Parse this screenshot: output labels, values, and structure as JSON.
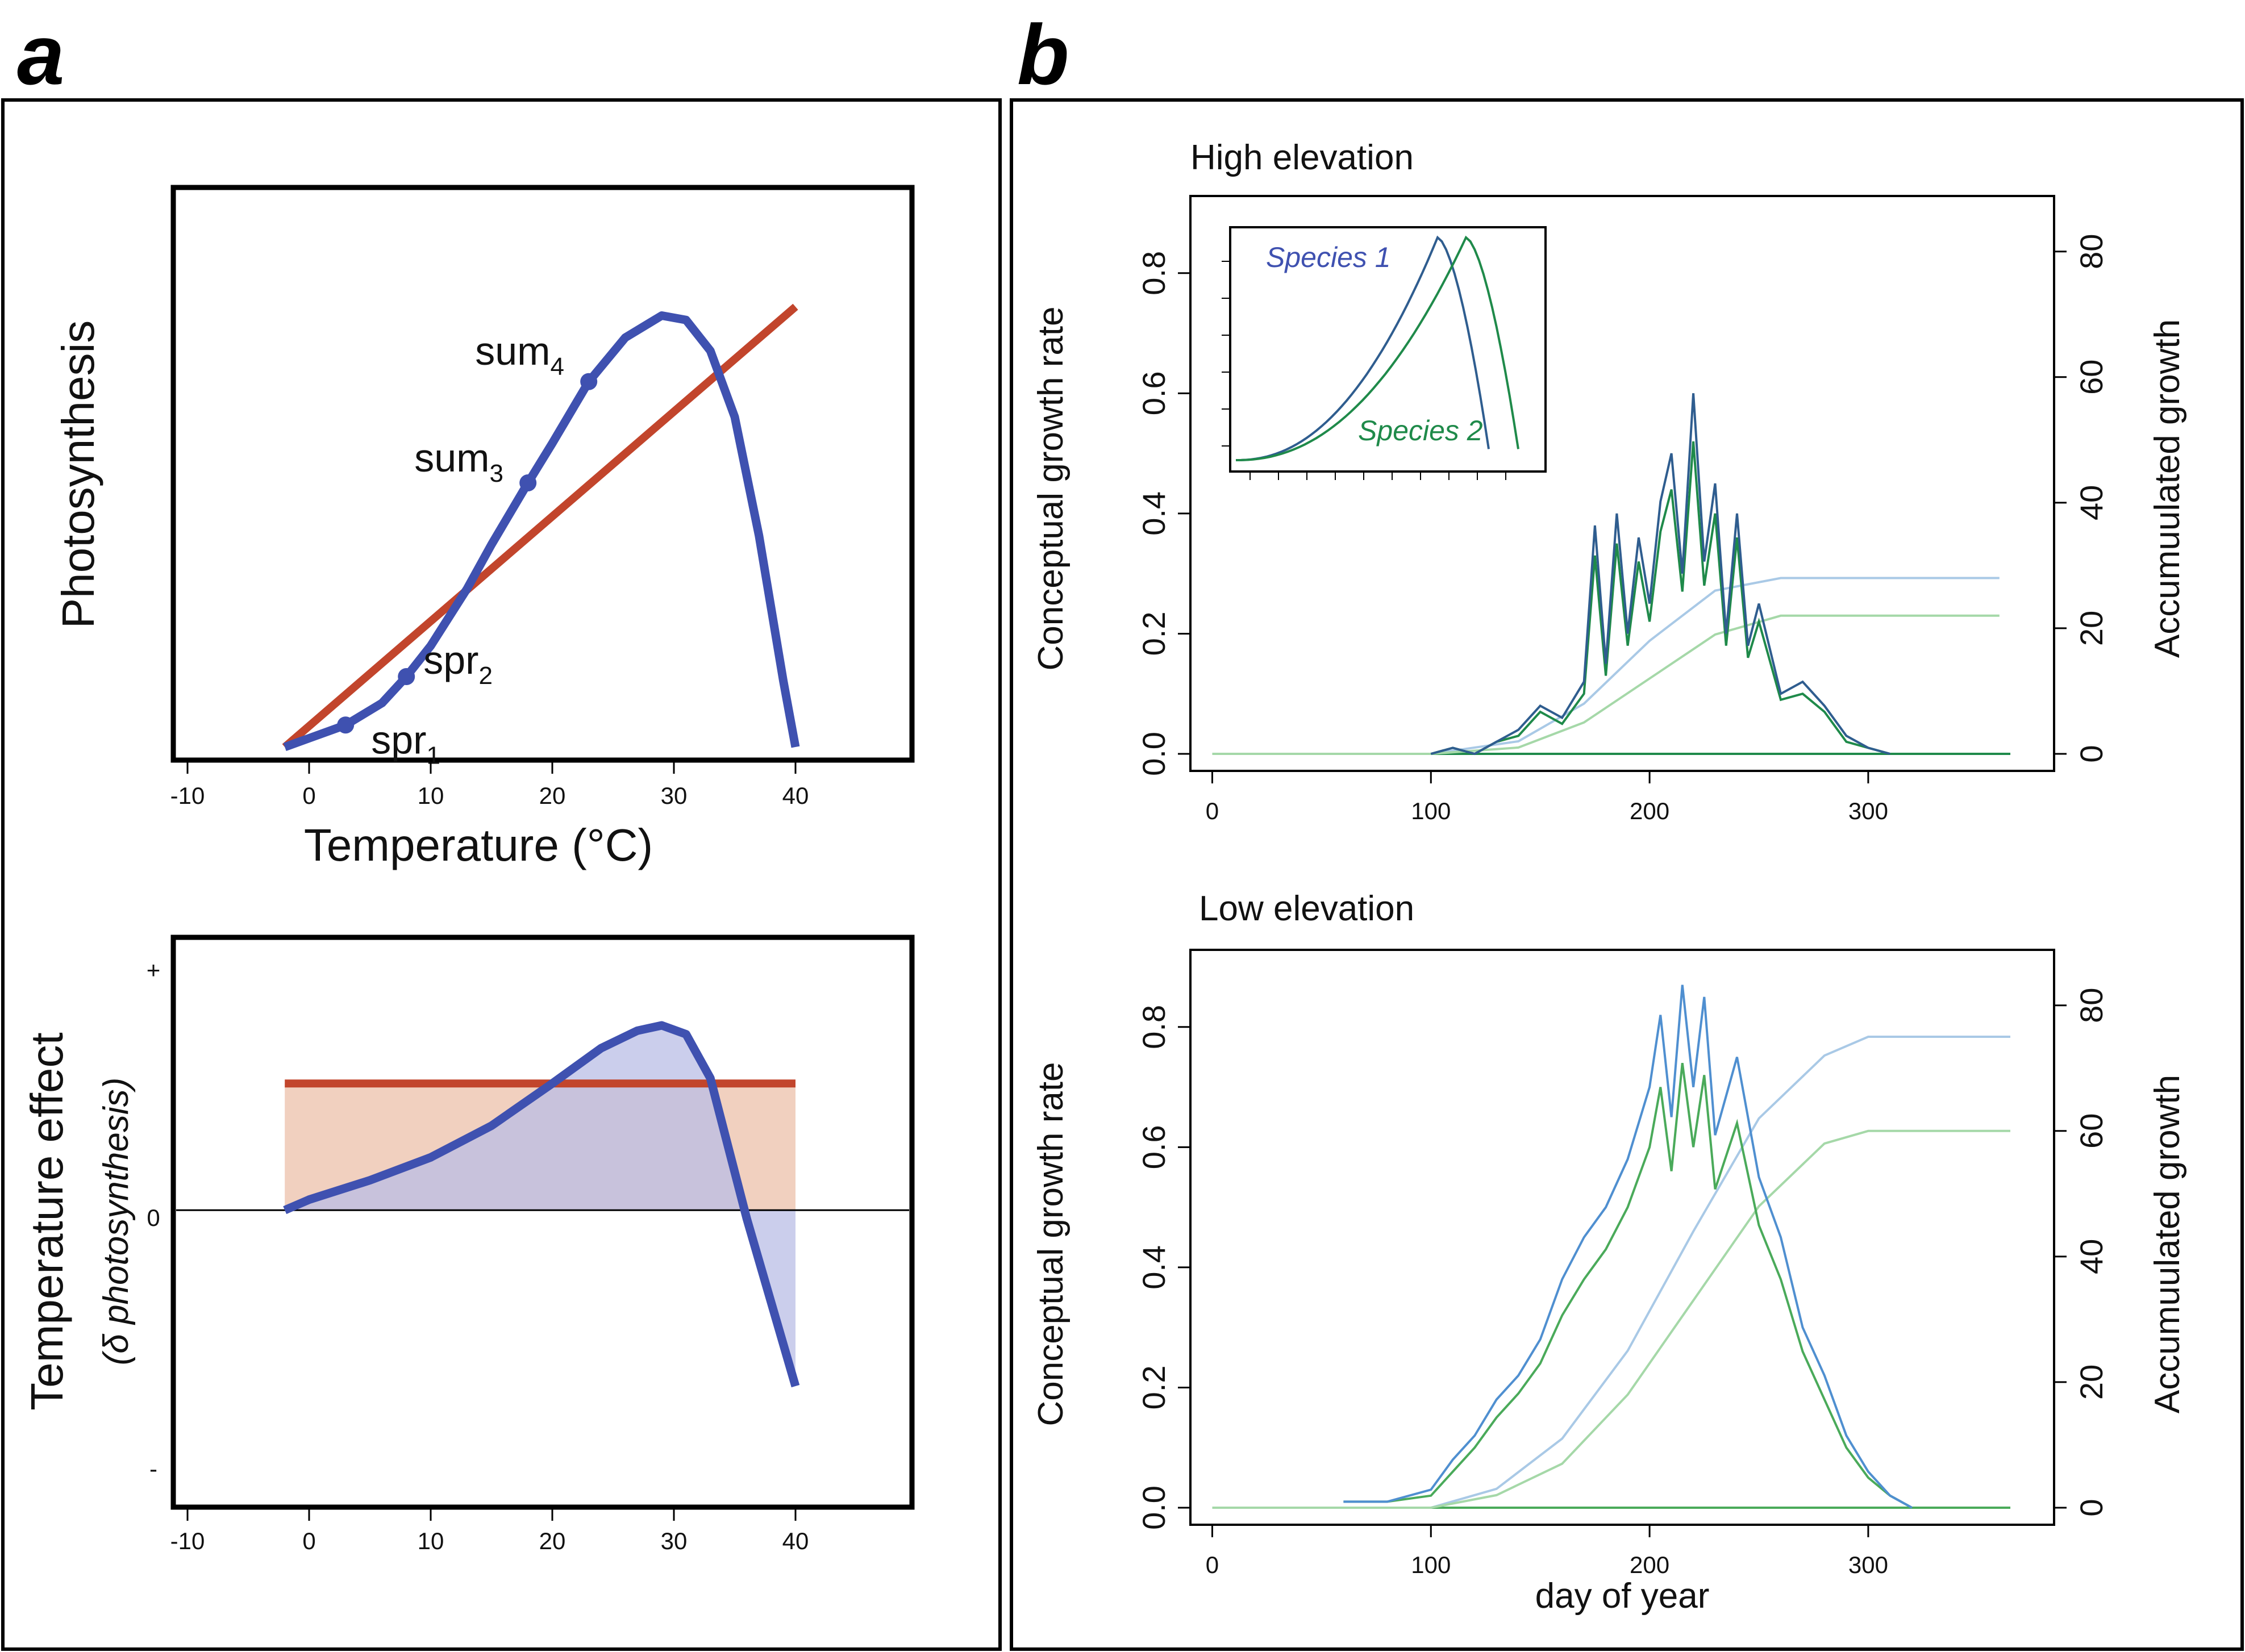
{
  "panels": {
    "a_label": "a",
    "b_label": "b"
  },
  "colors": {
    "blue_curve": "#3f51b0",
    "red_line": "#c2452c",
    "blue_fill": "#b9bde6",
    "red_fill": "#f0cbb8",
    "species1": "#2f5d8f",
    "species2": "#1f8a4a",
    "low_blue": "#4f8fd0",
    "low_green": "#4aaa5a",
    "accum_blue": "#a9c9e6",
    "accum_green": "#a5d8a8"
  },
  "chart_data": [
    {
      "id": "a-top",
      "type": "line",
      "ylabel": "Photosynthesis",
      "xlabel": "Temperature (°C)",
      "xticks": [
        "-10",
        "0",
        "10",
        "20",
        "30",
        "40"
      ],
      "xlim": [
        -10,
        40
      ],
      "series": [
        {
          "name": "",
          "x": [
            -2,
            0,
            3,
            6,
            8,
            10,
            13,
            15,
            18,
            20,
            23,
            26,
            29,
            31,
            33,
            35,
            37,
            39,
            40
          ],
          "y": [
            0.0,
            0.02,
            0.05,
            0.1,
            0.16,
            0.23,
            0.36,
            0.46,
            0.6,
            0.69,
            0.83,
            0.93,
            0.98,
            0.97,
            0.9,
            0.75,
            0.48,
            0.15,
            0.0
          ]
        },
        {
          "name": "",
          "x": [
            -2,
            40
          ],
          "y": [
            0.0,
            1.0
          ]
        }
      ],
      "points": [
        {
          "label": "spr",
          "sub": "1",
          "x": 3,
          "y": 0.05
        },
        {
          "label": "spr",
          "sub": "2",
          "x": 8,
          "y": 0.16
        },
        {
          "label": "sum",
          "sub": "3",
          "x": 18,
          "y": 0.6
        },
        {
          "label": "sum",
          "sub": "4",
          "x": 23,
          "y": 0.83
        }
      ]
    },
    {
      "id": "a-bottom",
      "type": "area",
      "ylabel": "Temperature effect",
      "ylabel2": "(δ photosynthesis)",
      "xticks": [
        "-10",
        "0",
        "10",
        "20",
        "30",
        "40"
      ],
      "yticks": [
        "+",
        "0",
        "-"
      ],
      "xlim": [
        -10,
        40
      ],
      "series": [
        {
          "name": "",
          "x": [
            -2,
            0,
            5,
            10,
            15,
            20,
            24,
            27,
            29,
            31,
            33,
            36,
            40
          ],
          "y": [
            0.0,
            0.06,
            0.17,
            0.3,
            0.48,
            0.72,
            0.92,
            1.02,
            1.05,
            1.0,
            0.75,
            -0.05,
            -1.0
          ]
        },
        {
          "name": "",
          "x": [
            -2,
            40
          ],
          "y": [
            0.72,
            0.72
          ]
        }
      ]
    },
    {
      "id": "b-top",
      "type": "line",
      "title": "High elevation",
      "xlabel": "",
      "ylabel": "Conceptual growth rate",
      "ylabel_right": "Accumuulated growth",
      "xticks": [
        "0",
        "100",
        "200",
        "300"
      ],
      "yticks": [
        "0.0",
        "0.2",
        "0.4",
        "0.6",
        "0.8"
      ],
      "yticks_right": [
        "0",
        "20",
        "40",
        "60",
        "80"
      ],
      "xlim": [
        -10,
        385
      ],
      "ylim": [
        0,
        0.9
      ],
      "ylim_right": [
        0,
        80
      ],
      "inset_labels": [
        "Species 1",
        "Species 2"
      ],
      "series": [
        {
          "name": "Species 1",
          "x": [
            100,
            110,
            120,
            130,
            140,
            150,
            160,
            170,
            175,
            180,
            185,
            190,
            195,
            200,
            205,
            210,
            215,
            220,
            225,
            230,
            235,
            240,
            245,
            250,
            260,
            270,
            280,
            290,
            300,
            310
          ],
          "y": [
            0,
            0.01,
            0.0,
            0.02,
            0.04,
            0.08,
            0.06,
            0.12,
            0.38,
            0.15,
            0.4,
            0.2,
            0.36,
            0.25,
            0.42,
            0.5,
            0.3,
            0.6,
            0.32,
            0.45,
            0.2,
            0.4,
            0.18,
            0.25,
            0.1,
            0.12,
            0.08,
            0.03,
            0.01,
            0
          ]
        },
        {
          "name": "Species 2",
          "x": [
            100,
            110,
            120,
            130,
            140,
            150,
            160,
            170,
            175,
            180,
            185,
            190,
            195,
            200,
            205,
            210,
            215,
            220,
            225,
            230,
            235,
            240,
            245,
            250,
            260,
            270,
            280,
            290,
            300,
            310
          ],
          "y": [
            0,
            0.01,
            0.0,
            0.02,
            0.03,
            0.07,
            0.05,
            0.1,
            0.33,
            0.13,
            0.35,
            0.18,
            0.32,
            0.22,
            0.37,
            0.44,
            0.27,
            0.52,
            0.28,
            0.4,
            0.18,
            0.36,
            0.16,
            0.22,
            0.09,
            0.1,
            0.07,
            0.02,
            0.01,
            0
          ]
        },
        {
          "name": "",
          "x": [
            0,
            100,
            140,
            170,
            200,
            230,
            260,
            300,
            360
          ],
          "y": [
            0,
            0,
            2,
            8,
            18,
            26,
            28,
            28,
            28
          ]
        },
        {
          "name": "",
          "x": [
            0,
            100,
            140,
            170,
            200,
            230,
            260,
            300,
            360
          ],
          "y": [
            0,
            0,
            1,
            5,
            12,
            19,
            22,
            22,
            22
          ]
        }
      ]
    },
    {
      "id": "b-bottom",
      "type": "line",
      "title": "Low elevation",
      "xlabel": "day of year",
      "ylabel": "Conceptual growth rate",
      "ylabel_right": "Accumuulated growth",
      "xticks": [
        "0",
        "100",
        "200",
        "300"
      ],
      "yticks": [
        "0.0",
        "0.2",
        "0.4",
        "0.6",
        "0.8"
      ],
      "yticks_right": [
        "0",
        "20",
        "40",
        "60",
        "80"
      ],
      "xlim": [
        -10,
        385
      ],
      "ylim": [
        0,
        0.9
      ],
      "ylim_right": [
        0,
        80
      ],
      "series": [
        {
          "name": "",
          "x": [
            60,
            80,
            100,
            110,
            120,
            130,
            140,
            150,
            160,
            170,
            180,
            190,
            200,
            205,
            210,
            215,
            220,
            225,
            230,
            240,
            250,
            260,
            270,
            280,
            290,
            300,
            310,
            320
          ],
          "y": [
            0.01,
            0.01,
            0.03,
            0.08,
            0.12,
            0.18,
            0.22,
            0.28,
            0.38,
            0.45,
            0.5,
            0.58,
            0.7,
            0.82,
            0.65,
            0.87,
            0.7,
            0.85,
            0.62,
            0.75,
            0.55,
            0.45,
            0.3,
            0.22,
            0.12,
            0.06,
            0.02,
            0
          ]
        },
        {
          "name": "",
          "x": [
            60,
            80,
            100,
            110,
            120,
            130,
            140,
            150,
            160,
            170,
            180,
            190,
            200,
            205,
            210,
            215,
            220,
            225,
            230,
            240,
            250,
            260,
            270,
            280,
            290,
            300,
            310,
            320
          ],
          "y": [
            0.01,
            0.01,
            0.02,
            0.06,
            0.1,
            0.15,
            0.19,
            0.24,
            0.32,
            0.38,
            0.43,
            0.5,
            0.6,
            0.7,
            0.56,
            0.74,
            0.6,
            0.72,
            0.53,
            0.64,
            0.47,
            0.38,
            0.26,
            0.18,
            0.1,
            0.05,
            0.02,
            0
          ]
        },
        {
          "name": "",
          "x": [
            0,
            100,
            130,
            160,
            190,
            220,
            250,
            280,
            300,
            365
          ],
          "y": [
            0,
            0,
            3,
            11,
            25,
            44,
            62,
            72,
            75,
            75
          ]
        },
        {
          "name": "",
          "x": [
            0,
            100,
            130,
            160,
            190,
            220,
            250,
            280,
            300,
            365
          ],
          "y": [
            0,
            0,
            2,
            7,
            18,
            33,
            48,
            58,
            60,
            60
          ]
        }
      ]
    }
  ]
}
